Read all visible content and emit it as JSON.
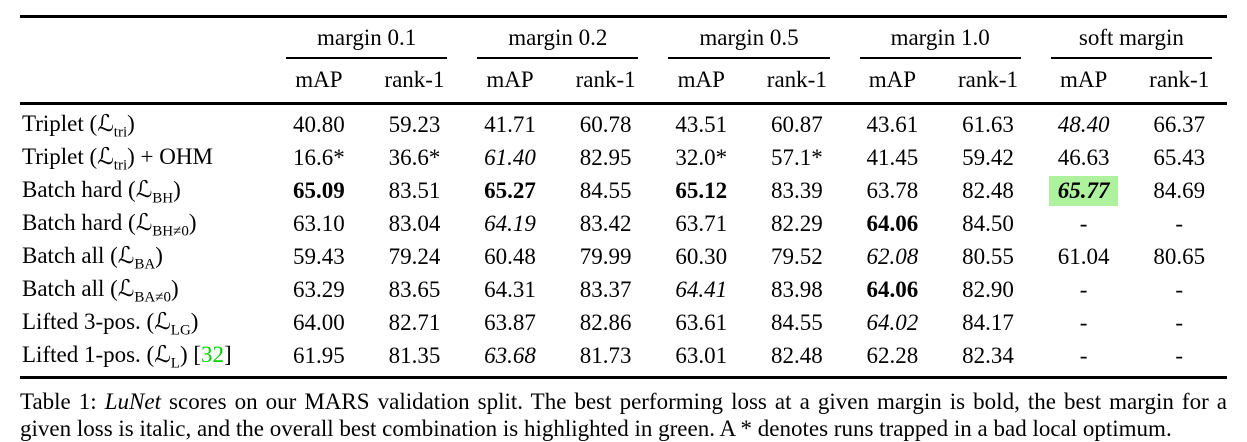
{
  "colors": {
    "best_combination_highlight": "#aef29e",
    "citation_green": "#00d200",
    "rule_color": "#000000"
  },
  "header": {
    "groups": [
      {
        "label": "margin 0.1"
      },
      {
        "label": "margin 0.2"
      },
      {
        "label": "margin 0.5"
      },
      {
        "label": "margin 1.0"
      },
      {
        "label": "soft margin"
      }
    ],
    "metrics": [
      "mAP",
      "rank-1"
    ]
  },
  "rows": [
    {
      "label": [
        {
          "type": "text",
          "value": "Triplet ("
        },
        {
          "type": "mathcal",
          "value": "ℒ"
        },
        {
          "type": "subscript",
          "value": "tri"
        },
        {
          "type": "text",
          "value": ")"
        }
      ],
      "cells": [
        {
          "value": "40.80"
        },
        {
          "value": "59.23"
        },
        {
          "value": "41.71"
        },
        {
          "value": "60.78"
        },
        {
          "value": "43.51"
        },
        {
          "value": "60.87"
        },
        {
          "value": "43.61"
        },
        {
          "value": "61.63"
        },
        {
          "value": "48.40",
          "italic": true
        },
        {
          "value": "66.37"
        }
      ]
    },
    {
      "label": [
        {
          "type": "text",
          "value": "Triplet ("
        },
        {
          "type": "mathcal",
          "value": "ℒ"
        },
        {
          "type": "subscript",
          "value": "tri"
        },
        {
          "type": "text",
          "value": ") + OHM"
        }
      ],
      "cells": [
        {
          "value": "16.6*"
        },
        {
          "value": "36.6*"
        },
        {
          "value": "61.40",
          "italic": true
        },
        {
          "value": "82.95"
        },
        {
          "value": "32.0*"
        },
        {
          "value": "57.1*"
        },
        {
          "value": "41.45"
        },
        {
          "value": "59.42"
        },
        {
          "value": "46.63"
        },
        {
          "value": "65.43"
        }
      ]
    },
    {
      "label": [
        {
          "type": "text",
          "value": "Batch hard ("
        },
        {
          "type": "mathcal",
          "value": "ℒ"
        },
        {
          "type": "subscript",
          "value": "BH"
        },
        {
          "type": "text",
          "value": ")"
        }
      ],
      "cells": [
        {
          "value": "65.09",
          "bold": true
        },
        {
          "value": "83.51"
        },
        {
          "value": "65.27",
          "bold": true
        },
        {
          "value": "84.55"
        },
        {
          "value": "65.12",
          "bold": true
        },
        {
          "value": "83.39"
        },
        {
          "value": "63.78"
        },
        {
          "value": "82.48"
        },
        {
          "value": "65.77",
          "bold": true,
          "italic": true,
          "highlight": true
        },
        {
          "value": "84.69"
        }
      ]
    },
    {
      "label": [
        {
          "type": "text",
          "value": "Batch hard ("
        },
        {
          "type": "mathcal",
          "value": "ℒ"
        },
        {
          "type": "subscript",
          "value": "BH≠0"
        },
        {
          "type": "text",
          "value": ")"
        }
      ],
      "cells": [
        {
          "value": "63.10"
        },
        {
          "value": "83.04"
        },
        {
          "value": "64.19",
          "italic": true
        },
        {
          "value": "83.42"
        },
        {
          "value": "63.71"
        },
        {
          "value": "82.29"
        },
        {
          "value": "64.06",
          "bold": true
        },
        {
          "value": "84.50"
        },
        {
          "value": "-"
        },
        {
          "value": "-"
        }
      ]
    },
    {
      "label": [
        {
          "type": "text",
          "value": "Batch all ("
        },
        {
          "type": "mathcal",
          "value": "ℒ"
        },
        {
          "type": "subscript",
          "value": "BA"
        },
        {
          "type": "text",
          "value": ")"
        }
      ],
      "cells": [
        {
          "value": "59.43"
        },
        {
          "value": "79.24"
        },
        {
          "value": "60.48"
        },
        {
          "value": "79.99"
        },
        {
          "value": "60.30"
        },
        {
          "value": "79.52"
        },
        {
          "value": "62.08",
          "italic": true
        },
        {
          "value": "80.55"
        },
        {
          "value": "61.04"
        },
        {
          "value": "80.65"
        }
      ]
    },
    {
      "label": [
        {
          "type": "text",
          "value": "Batch all ("
        },
        {
          "type": "mathcal",
          "value": "ℒ"
        },
        {
          "type": "subscript",
          "value": "BA≠0"
        },
        {
          "type": "text",
          "value": ")"
        }
      ],
      "cells": [
        {
          "value": "63.29"
        },
        {
          "value": "83.65"
        },
        {
          "value": "64.31"
        },
        {
          "value": "83.37"
        },
        {
          "value": "64.41",
          "italic": true
        },
        {
          "value": "83.98"
        },
        {
          "value": "64.06",
          "bold": true
        },
        {
          "value": "82.90"
        },
        {
          "value": "-"
        },
        {
          "value": "-"
        }
      ]
    },
    {
      "label": [
        {
          "type": "text",
          "value": "Lifted 3-pos. ("
        },
        {
          "type": "mathcal",
          "value": "ℒ"
        },
        {
          "type": "subscript",
          "value": "LG"
        },
        {
          "type": "text",
          "value": ")"
        }
      ],
      "cells": [
        {
          "value": "64.00"
        },
        {
          "value": "82.71"
        },
        {
          "value": "63.87"
        },
        {
          "value": "82.86"
        },
        {
          "value": "63.61"
        },
        {
          "value": "84.55"
        },
        {
          "value": "64.02",
          "italic": true
        },
        {
          "value": "84.17"
        },
        {
          "value": "-"
        },
        {
          "value": "-"
        }
      ]
    },
    {
      "label": [
        {
          "type": "text",
          "value": "Lifted 1-pos. ("
        },
        {
          "type": "mathcal",
          "value": "ℒ"
        },
        {
          "type": "subscript",
          "value": "L"
        },
        {
          "type": "text",
          "value": ") ["
        },
        {
          "type": "citation",
          "value": "32"
        },
        {
          "type": "text",
          "value": "]"
        }
      ],
      "cells": [
        {
          "value": "61.95"
        },
        {
          "value": "81.35"
        },
        {
          "value": "63.68",
          "italic": true
        },
        {
          "value": "81.73"
        },
        {
          "value": "63.01"
        },
        {
          "value": "82.48"
        },
        {
          "value": "62.28"
        },
        {
          "value": "82.34"
        },
        {
          "value": "-"
        },
        {
          "value": "-"
        }
      ]
    }
  ],
  "caption": {
    "segments": [
      {
        "type": "text",
        "value": "Table 1: "
      },
      {
        "type": "italic",
        "value": "LuNet"
      },
      {
        "type": "text",
        "value": " scores on our MARS validation split. The best performing loss at a given margin is bold, the best margin for a given loss is italic, and the overall best combination is highlighted in green. A * denotes runs trapped in a bad local optimum."
      }
    ]
  }
}
